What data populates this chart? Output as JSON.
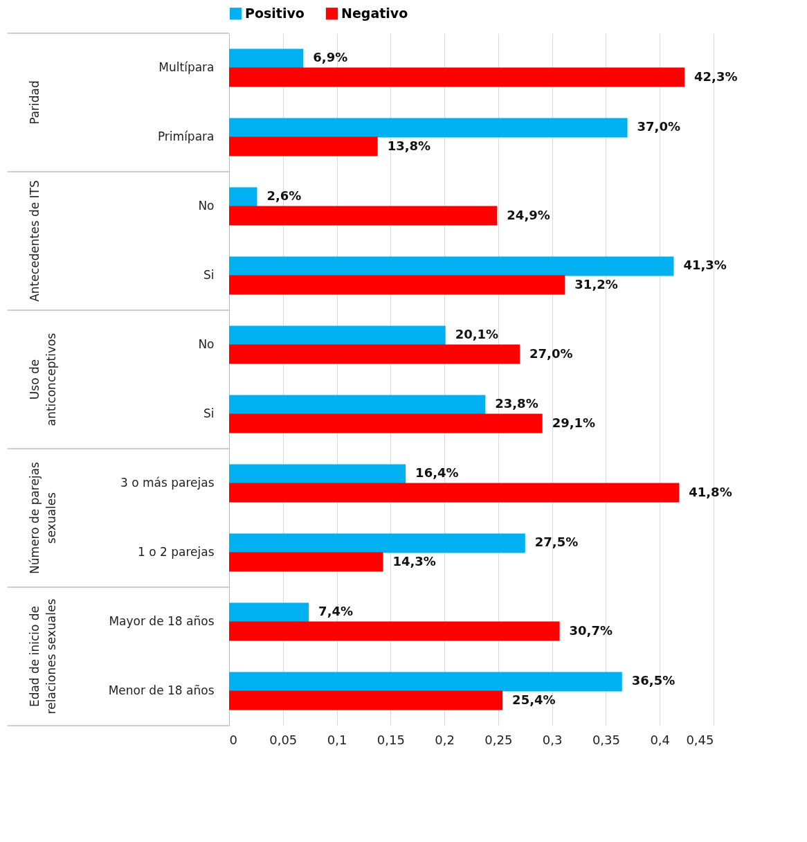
{
  "chart_data": {
    "type": "bar",
    "orientation": "horizontal",
    "categories": [
      "Multípara",
      "Primípara",
      "No",
      "Si",
      "No",
      "Si",
      "3 o más parejas",
      "1 o 2 parejas",
      "Mayor de 18 años",
      "Menor de 18 años"
    ],
    "series": [
      {
        "name": "Positivo",
        "color": "#00b0f0",
        "values": [
          0.069,
          0.37,
          0.026,
          0.413,
          0.201,
          0.238,
          0.164,
          0.275,
          0.074,
          0.365
        ],
        "value_labels": [
          "6,9%",
          "37,0%",
          "2,6%",
          "41,3%",
          "20,1%",
          "23,8%",
          "16,4%",
          "27,5%",
          "7,4%",
          "36,5%"
        ]
      },
      {
        "name": "Negativo",
        "color": "#ff0000",
        "values": [
          0.423,
          0.138,
          0.249,
          0.312,
          0.27,
          0.291,
          0.418,
          0.143,
          0.307,
          0.254
        ],
        "value_labels": [
          "42,3%",
          "13,8%",
          "24,9%",
          "31,2%",
          "27,0%",
          "29,1%",
          "41,8%",
          "14,3%",
          "30,7%",
          "25,4%"
        ]
      }
    ],
    "annotations": [
      "Paridad",
      "Antecedentes de ITS",
      "Uso de\nanticonceptivos",
      "Número de parejas\nsexuales",
      "Edad de inicio de\nrelaciones sexuales"
    ],
    "xlim": [
      0,
      0.45
    ],
    "xticks": [
      {
        "value": 0,
        "label": "0"
      },
      {
        "value": 0.05,
        "label": "0,05"
      },
      {
        "value": 0.1,
        "label": "0,1"
      },
      {
        "value": 0.15,
        "label": "0,15"
      },
      {
        "value": 0.2,
        "label": "0,2"
      },
      {
        "value": 0.25,
        "label": "0,25"
      },
      {
        "value": 0.3,
        "label": "0,3"
      },
      {
        "value": 0.35,
        "label": "0,35"
      },
      {
        "value": 0.4,
        "label": "0,4"
      },
      {
        "value": 0.45,
        "label": "0,45"
      }
    ],
    "grid": "x",
    "legend": "top"
  }
}
